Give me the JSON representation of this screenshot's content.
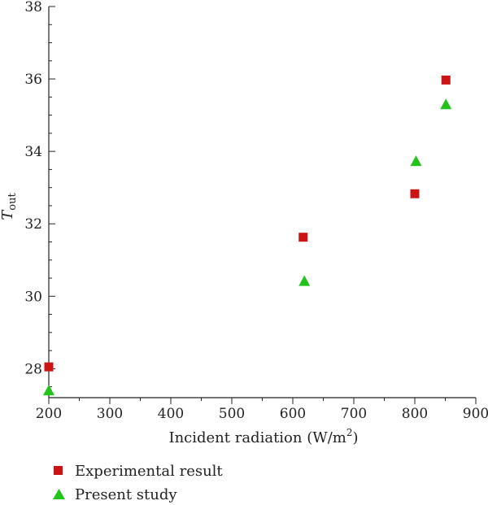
{
  "chart_data": {
    "type": "scatter",
    "xlabel": "Incident radiation (W/m",
    "xlabel_sup": "2",
    "xlabel_tail": ")",
    "ylabel": "T",
    "ylabel_sub": "out",
    "xlim": [
      200,
      900
    ],
    "ylim": [
      27.2,
      38
    ],
    "x_ticks": [
      200,
      300,
      400,
      500,
      600,
      700,
      800,
      900
    ],
    "x_tick_labels": [
      "200",
      "300",
      "400",
      "500",
      "600",
      "700",
      "800",
      "900"
    ],
    "x_minor_step": 50,
    "y_ticks": [
      28,
      30,
      32,
      34,
      36,
      38
    ],
    "y_tick_labels": [
      "28",
      "30",
      "32",
      "34",
      "36",
      "38"
    ],
    "y_minor_step": 0.5,
    "grid": false,
    "legend_position": "bottom-left",
    "series": [
      {
        "name": "Experimental result",
        "marker": "square",
        "color": "#cc1414",
        "x": [
          200,
          617,
          800,
          851
        ],
        "y": [
          28.05,
          31.63,
          32.83,
          35.97
        ]
      },
      {
        "name": "Present study",
        "marker": "triangle",
        "color": "#22c41a",
        "x": [
          200,
          619,
          802,
          851
        ],
        "y": [
          27.4,
          30.42,
          33.73,
          35.3
        ]
      }
    ]
  }
}
